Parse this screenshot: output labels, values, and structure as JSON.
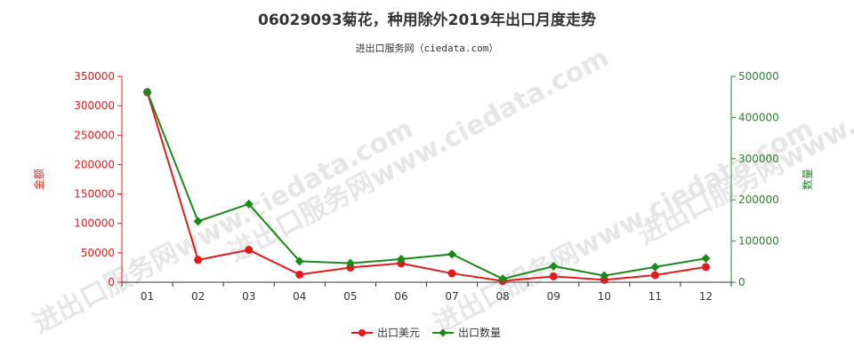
{
  "title": "06029093菊花，种用除外2019年出口月度走势",
  "subtitle": "进出口服务网（ciedata.com）",
  "watermark": "进出口服务网www.ciedata.com",
  "colors": {
    "left_axis": "#e31a1c",
    "right_axis": "#2e7d32",
    "series1": "#e31a1c",
    "series2": "#1a8a1a"
  },
  "chart_data": {
    "type": "line",
    "categories": [
      "01",
      "02",
      "03",
      "04",
      "05",
      "06",
      "07",
      "08",
      "09",
      "10",
      "11",
      "12"
    ],
    "y_left": {
      "label": "金额",
      "min": 0,
      "max": 350000,
      "ticks": [
        0,
        50000,
        100000,
        150000,
        200000,
        250000,
        300000,
        350000
      ]
    },
    "y_right": {
      "label": "数量",
      "min": 0,
      "max": 500000,
      "ticks": [
        0,
        100000,
        200000,
        300000,
        400000,
        500000
      ]
    },
    "series": [
      {
        "name": "出口美元",
        "axis": "left",
        "marker": "circle",
        "values": [
          323000,
          38000,
          55000,
          13000,
          25000,
          32000,
          15000,
          2000,
          10000,
          4000,
          12000,
          26000
        ]
      },
      {
        "name": "出口数量",
        "axis": "right",
        "marker": "diamond",
        "values": [
          462000,
          148000,
          190000,
          51000,
          46000,
          56000,
          68000,
          8000,
          39000,
          16000,
          37000,
          58000
        ]
      }
    ],
    "legend_position": "bottom"
  }
}
